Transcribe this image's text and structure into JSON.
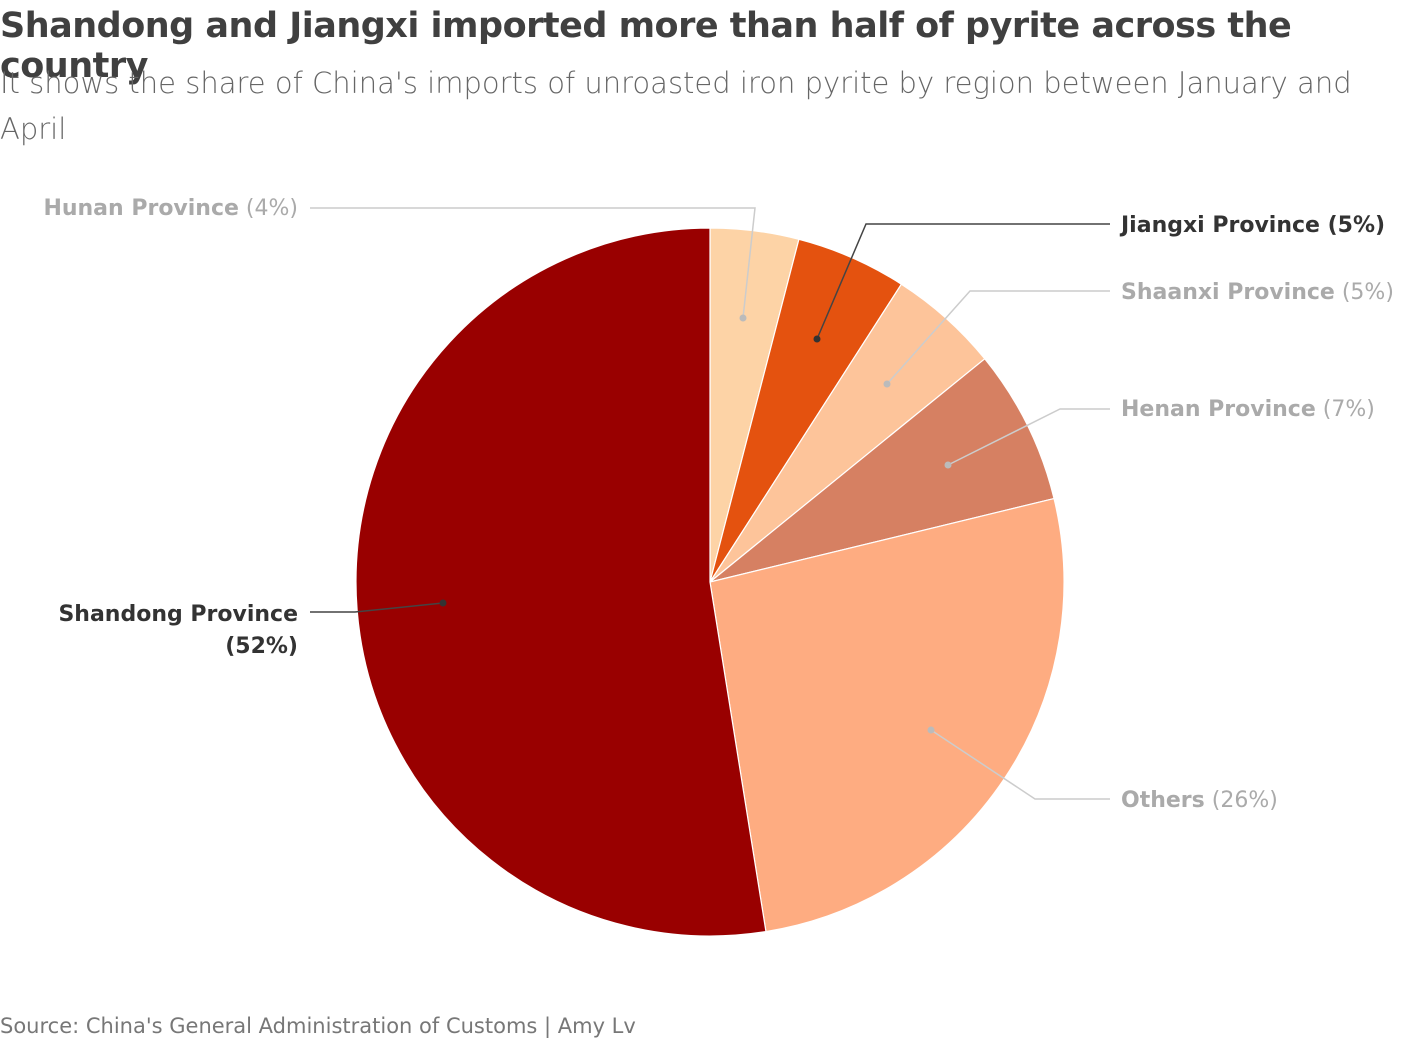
{
  "chart_data": {
    "type": "pie",
    "title": "Shandong and Jiangxi imported more than half of pyrite across the country",
    "subtitle": "It shows the share of China's imports of unroasted iron pyrite by region between January and April",
    "source": "Source: China's General Administration of Customs  | Amy Lv",
    "categories": [
      "Hunan Province",
      "Jiangxi Province",
      "Shaanxi Province",
      "Henan Province",
      "Others",
      "Shandong Province"
    ],
    "values": [
      4,
      5,
      5,
      7,
      26,
      52
    ],
    "value_labels": [
      "(4%)",
      "(5%)",
      "(5%)",
      "(7%)",
      "(26%)",
      "(52%)"
    ],
    "colors": [
      "#fdd3a6",
      "#e4520f",
      "#fdc49a",
      "#d68062",
      "#feac81",
      "#990000"
    ],
    "label_colors": [
      "#aaaaaa",
      "#333333",
      "#aaaaaa",
      "#aaaaaa",
      "#aaaaaa",
      "#333333"
    ]
  }
}
